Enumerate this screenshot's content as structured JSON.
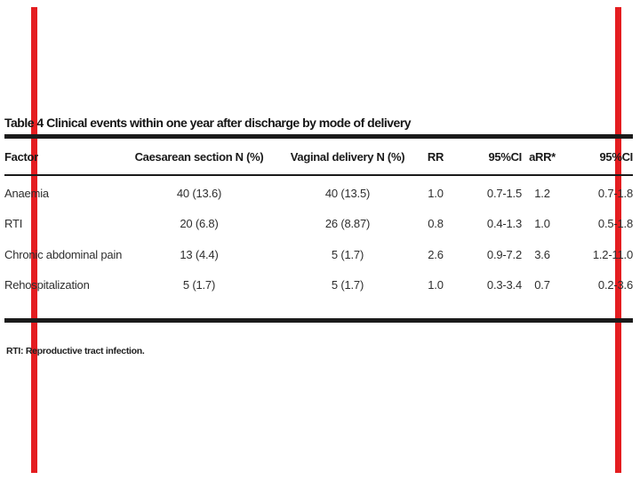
{
  "decor": {
    "left_bar_color": "#e41d20",
    "right_bar_color": "#e41d20"
  },
  "table": {
    "title": "Table 4 Clinical events within one year after discharge by mode of delivery",
    "columns": [
      "Factor",
      "Caesarean section N (%)",
      "Vaginal delivery N (%)",
      "RR",
      "95%CI",
      "aRR*",
      "95%CI"
    ],
    "rows": [
      [
        "Anaemia",
        "40 (13.6)",
        "40 (13.5)",
        "1.0",
        "0.7-1.5",
        "1.2",
        "0.7-1.8"
      ],
      [
        "RTI",
        "20 (6.8)",
        "26 (8.87)",
        "0.8",
        "0.4-1.3",
        "1.0",
        "0.5-1.8"
      ],
      [
        "Chronic abdominal pain",
        "13 (4.4)",
        "5 (1.7)",
        "2.6",
        "0.9-7.2",
        "3.6",
        "1.2-11.0"
      ],
      [
        "Rehospitalization",
        "5 (1.7)",
        "5 (1.7)",
        "1.0",
        "0.3-3.4",
        "0.7",
        "0.2-3.6"
      ]
    ],
    "footnote": "RTI: Reproductive tract infection."
  }
}
